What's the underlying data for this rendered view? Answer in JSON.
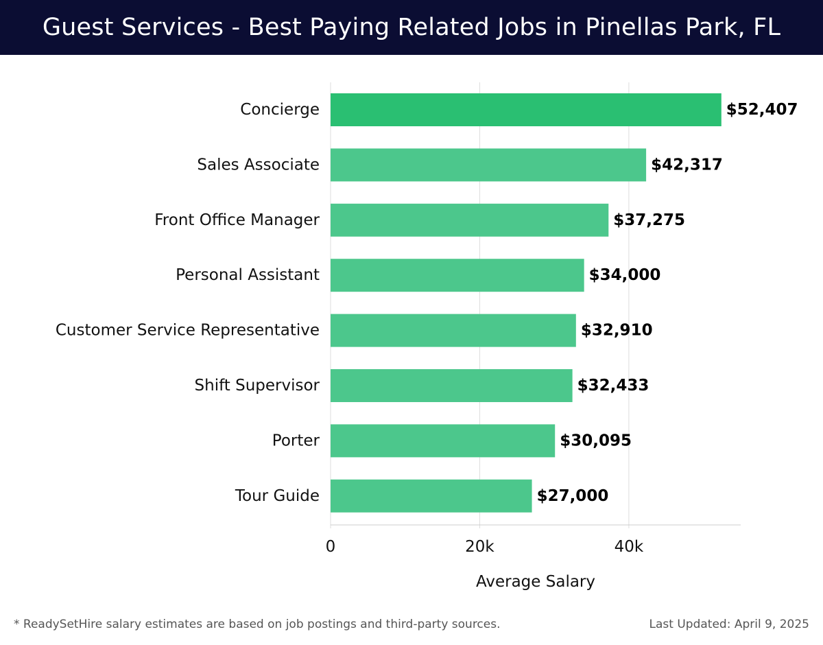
{
  "title": "Guest Services - Best Paying Related Jobs in Pinellas Park, FL",
  "footer": {
    "note": "* ReadySetHire salary estimates are based on job postings and third-party sources.",
    "updated": "Last Updated: April 9, 2025"
  },
  "colors": {
    "header_bg": "#0b0d33",
    "bar_top": "#2abf72",
    "bar": "#4cc78c",
    "grid": "#dddddd"
  },
  "chart_data": {
    "type": "bar",
    "orientation": "horizontal",
    "categories": [
      "Concierge",
      "Sales Associate",
      "Front Office Manager",
      "Personal Assistant",
      "Customer Service Representative",
      "Shift Supervisor",
      "Porter",
      "Tour Guide"
    ],
    "values": [
      52407,
      42317,
      37275,
      34000,
      32910,
      32433,
      30095,
      27000
    ],
    "value_labels": [
      "$52,407",
      "$42,317",
      "$37,275",
      "$34,000",
      "$32,910",
      "$32,433",
      "$30,095",
      "$27,000"
    ],
    "xlabel": "Average Salary",
    "xticks": [
      0,
      20000,
      40000
    ],
    "xtick_labels": [
      "0",
      "20k",
      "40k"
    ],
    "xlim": [
      0,
      55000
    ],
    "grid": true
  }
}
